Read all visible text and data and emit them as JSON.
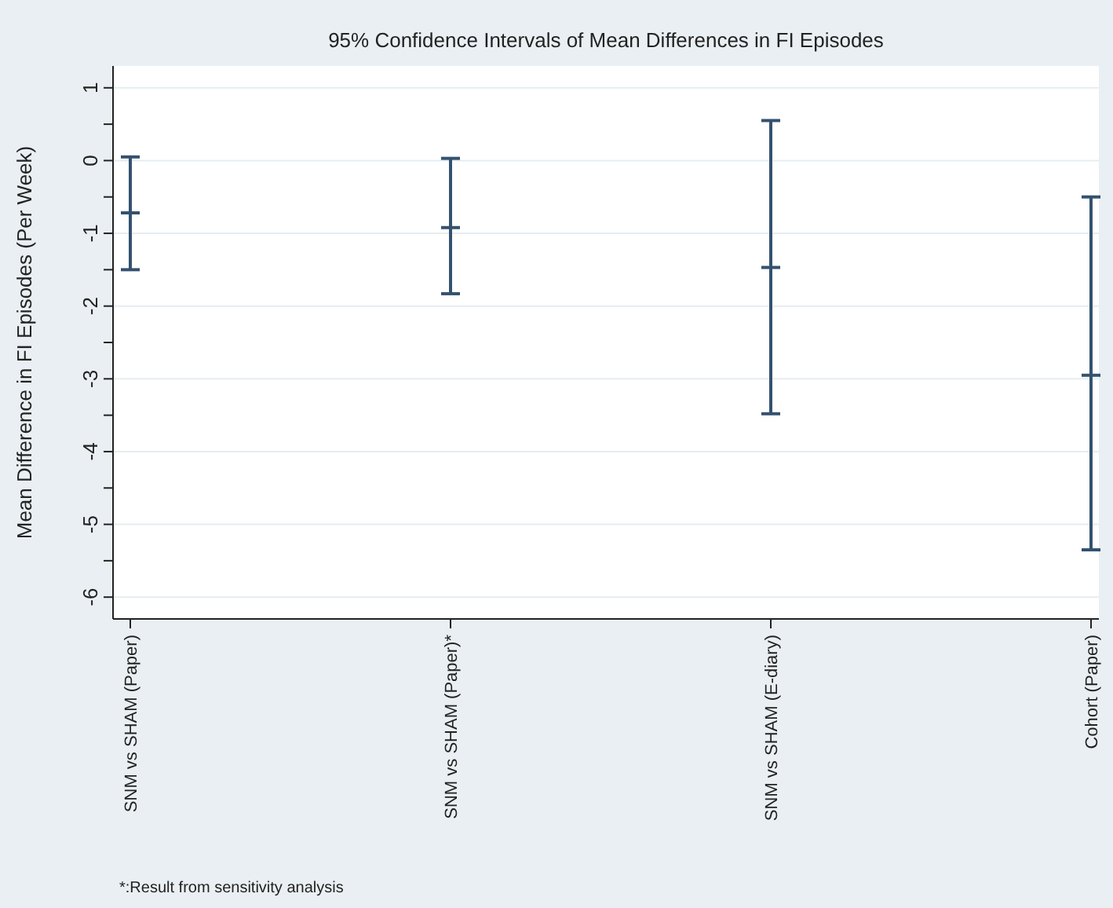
{
  "chart_data": {
    "type": "scatter",
    "title": "95% Confidence Intervals of Mean Differences in FI Episodes",
    "ylabel": "Mean Difference in FI Episodes (Per Week)",
    "categories": [
      "SNM vs SHAM (Paper)",
      "SNM vs SHAM (Paper)*",
      "SNM vs SHAM (E-diary)",
      "Cohort (Paper)"
    ],
    "series": [
      {
        "color": "#34526f",
        "values": [
          -0.72,
          -0.92,
          -1.47,
          -2.95
        ],
        "errors": [
          [
            -1.5,
            0.05
          ],
          [
            -1.83,
            0.03
          ],
          [
            -3.48,
            0.55
          ],
          [
            -5.35,
            -0.5
          ]
        ]
      }
    ],
    "ylim": [
      -6.3,
      1.3
    ],
    "yticks": [
      -6,
      {
        "value": -5.5,
        "label": null
      },
      -5,
      {
        "value": -4.5,
        "label": null
      },
      -4,
      {
        "value": -3.5,
        "label": null
      },
      -3,
      {
        "value": -2.5,
        "label": null
      },
      -2,
      {
        "value": -1.5,
        "label": null
      },
      -1,
      {
        "value": -0.5,
        "label": null
      },
      0,
      {
        "value": 0.5,
        "label": null
      },
      1
    ],
    "grid": "y",
    "marker": "cross",
    "annotations": [
      "*:Result from sensitivity analysis"
    ]
  }
}
